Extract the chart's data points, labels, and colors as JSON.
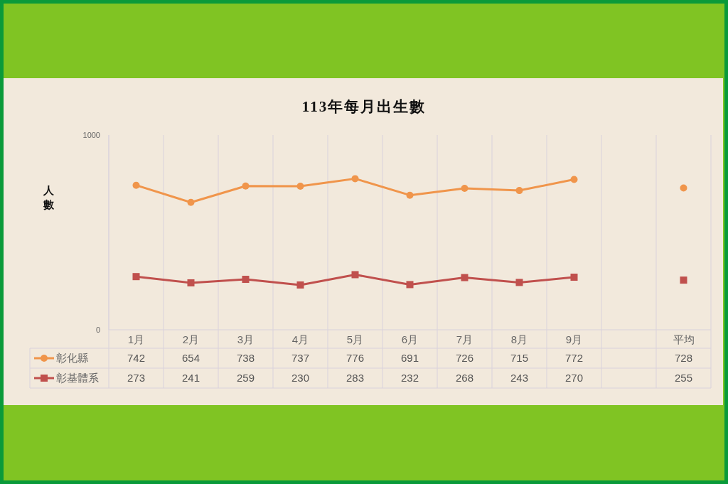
{
  "chart_data": {
    "type": "line",
    "title": "113年每月出生數",
    "ylabel": "人數",
    "categories": [
      "1月",
      "2月",
      "3月",
      "4月",
      "5月",
      "6月",
      "7月",
      "8月",
      "9月",
      null,
      "平均"
    ],
    "series": [
      {
        "name": "彰化縣",
        "color": "#f0954b",
        "marker": "circle",
        "values": [
          742,
          654,
          738,
          737,
          776,
          691,
          726,
          715,
          772,
          null,
          728
        ]
      },
      {
        "name": "彰基體系",
        "color": "#c0504d",
        "marker": "square",
        "values": [
          273,
          241,
          259,
          230,
          283,
          232,
          268,
          243,
          270,
          null,
          255
        ]
      }
    ],
    "ylim": [
      0,
      1000
    ],
    "yticks": [
      0,
      1000
    ],
    "grid": "x",
    "legend": "bottom left",
    "data_labels": true
  }
}
